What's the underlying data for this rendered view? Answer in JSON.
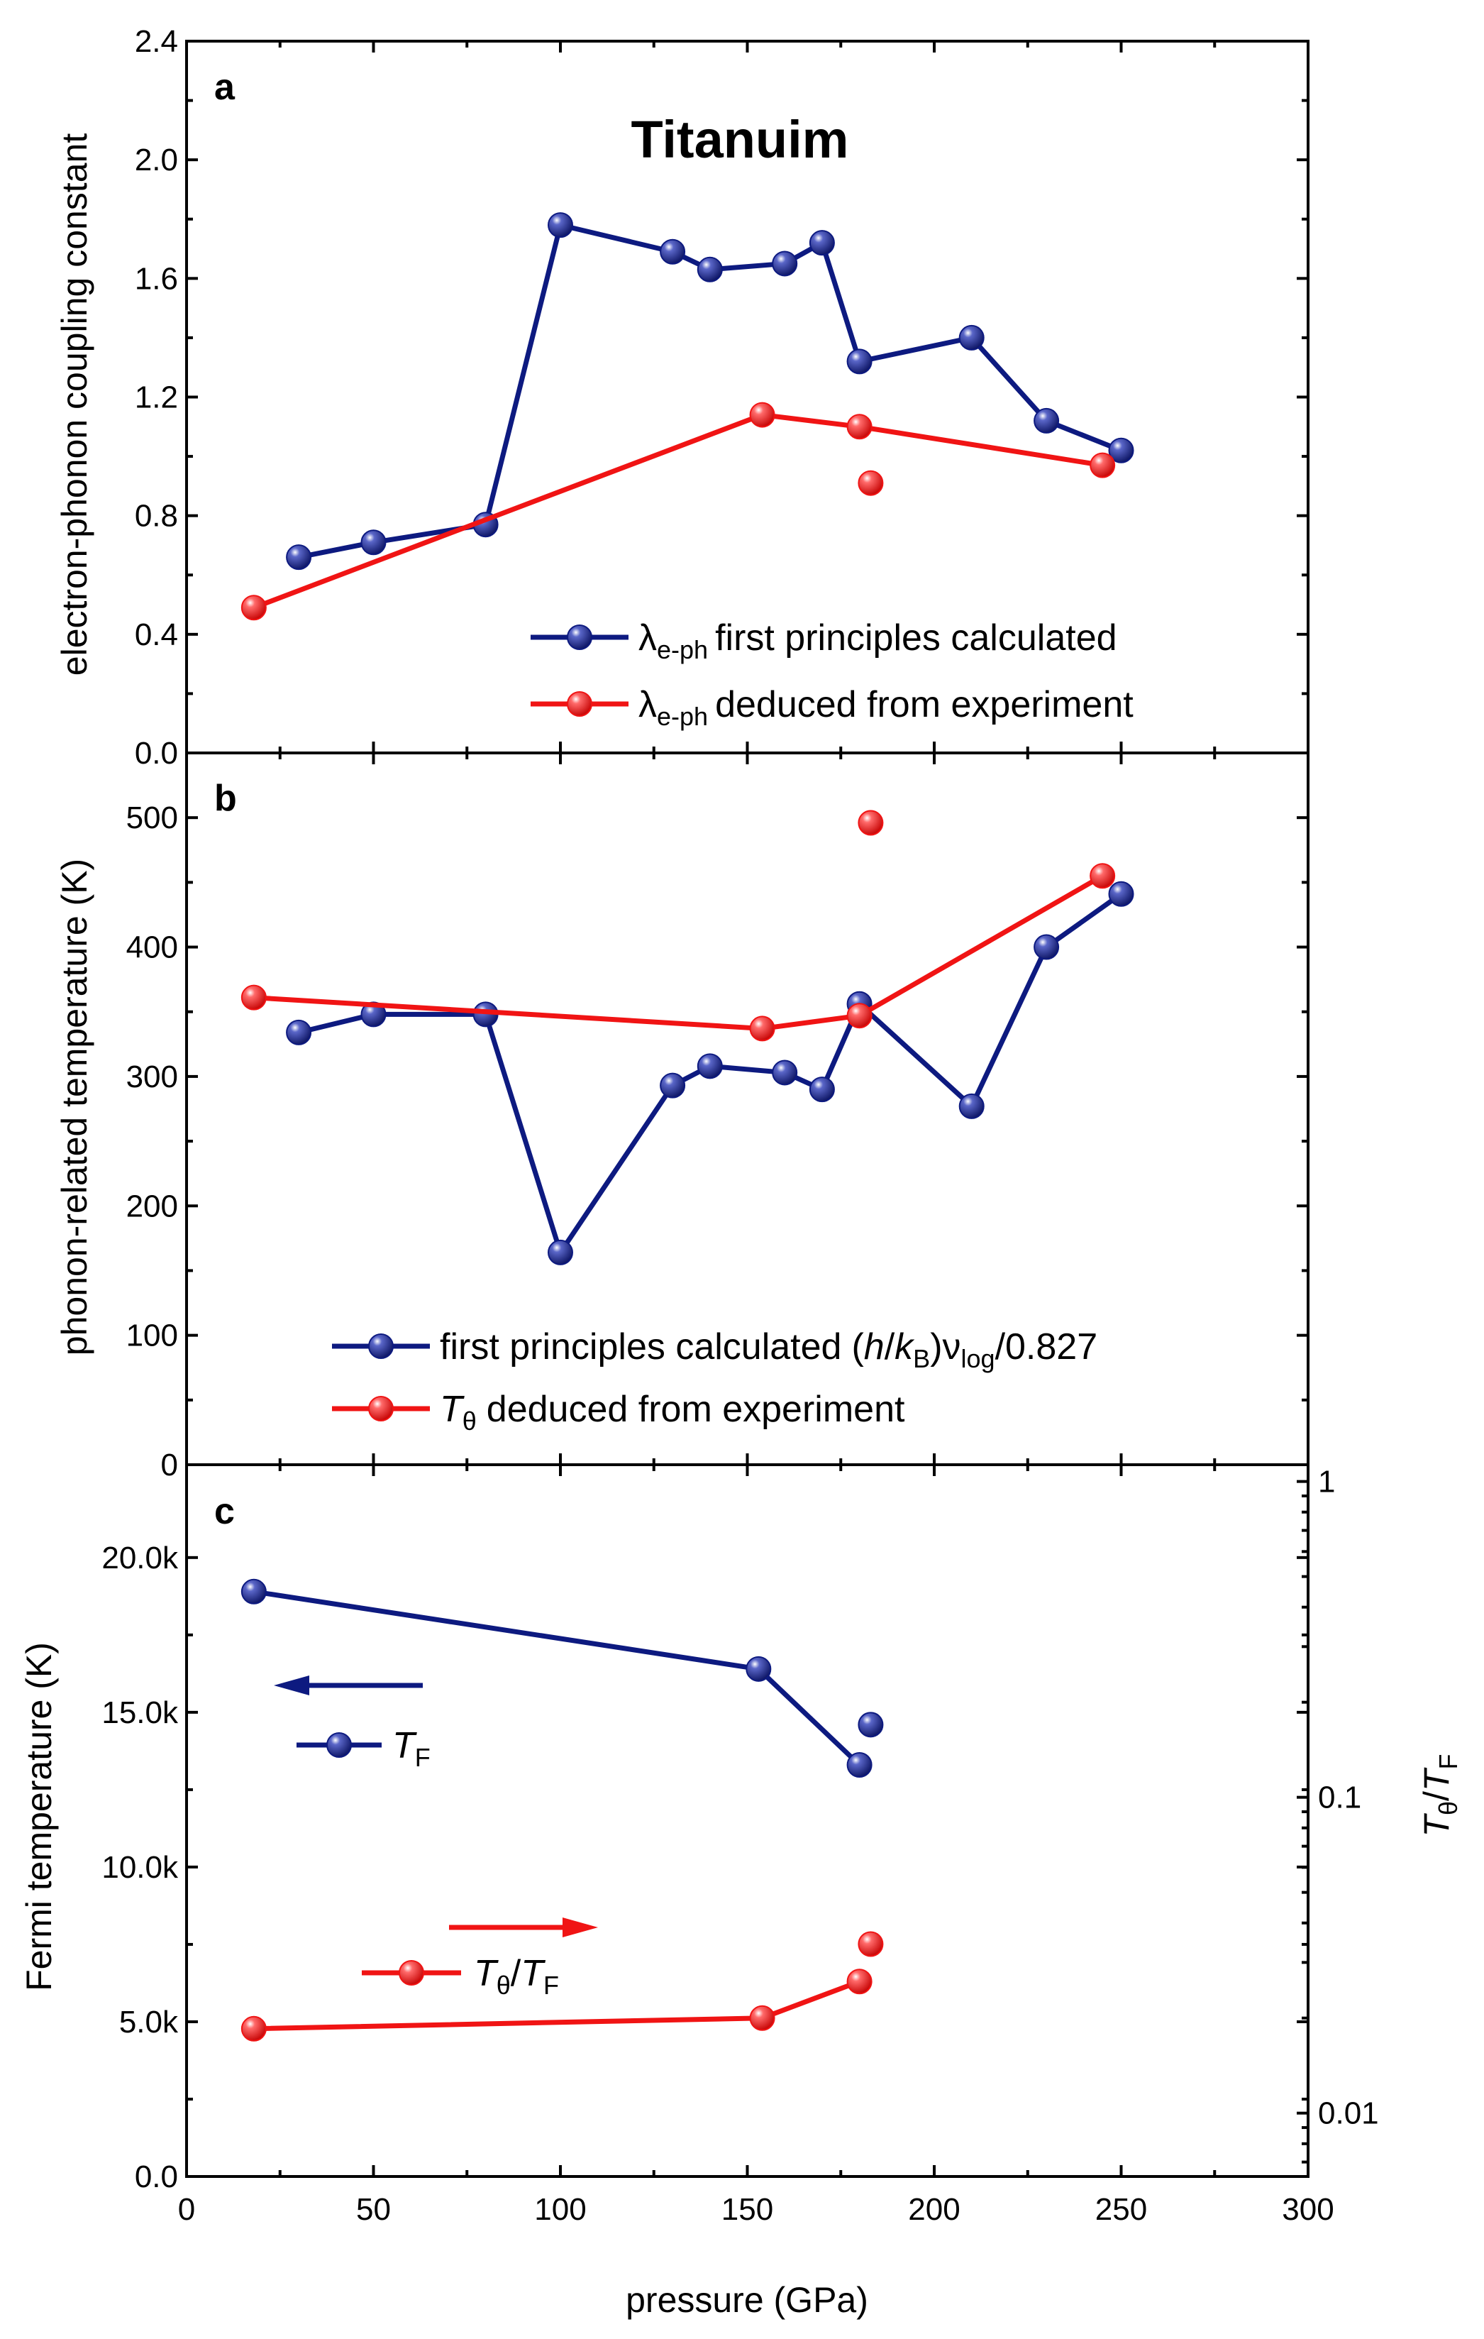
{
  "colors": {
    "navy": "#0d1a80",
    "red": "#f01414"
  },
  "xaxis": {
    "label": "pressure (GPa)",
    "range": [
      0,
      300
    ],
    "ticks": [
      0,
      50,
      100,
      150,
      200,
      250,
      300
    ],
    "tick_labels": [
      "0",
      "50",
      "100",
      "150",
      "200",
      "250",
      "300"
    ]
  },
  "chart_data": [
    {
      "panel": "a",
      "type": "line",
      "title": "Titanuim",
      "ylabel": "electron-phonon coupling constant",
      "ylim": [
        0,
        2.4
      ],
      "yticks": [
        0,
        0.4,
        0.8,
        1.2,
        1.6,
        2.0,
        2.4
      ],
      "ytick_labels": [
        "0.0",
        "0.4",
        "0.8",
        "1.2",
        "1.6",
        "2.0",
        "2.4"
      ],
      "legend_position": "bottom-right",
      "series": [
        {
          "name": "first principles calculated",
          "symbol": "λ",
          "sub": "e-ph",
          "color": "navy",
          "x": [
            30,
            50,
            80,
            100,
            130,
            140,
            160,
            170,
            180,
            210,
            230,
            250
          ],
          "y": [
            0.66,
            0.71,
            0.77,
            1.78,
            1.69,
            1.63,
            1.65,
            1.72,
            1.32,
            1.4,
            1.12,
            1.02
          ]
        },
        {
          "name": "deduced from experiment",
          "symbol": "λ",
          "sub": "e-ph",
          "color": "red",
          "x": [
            18,
            154,
            180,
            245
          ],
          "y": [
            0.49,
            1.14,
            1.1,
            0.97
          ],
          "extra_points": {
            "x": [
              183
            ],
            "y": [
              0.91
            ]
          }
        }
      ]
    },
    {
      "panel": "b",
      "type": "line",
      "ylabel": "phonon-related temperature (K)",
      "ylim": [
        0,
        550
      ],
      "yticks": [
        0,
        100,
        200,
        300,
        400,
        500
      ],
      "ytick_labels": [
        "0",
        "100",
        "200",
        "300",
        "400",
        "500"
      ],
      "legend_position": "bottom-center",
      "series": [
        {
          "name": "first principles calculated",
          "formula_h": "h",
          "formula_k": "k",
          "formula_b": "B",
          "formula_nu": "ν",
          "formula_log": "log",
          "formula_tail": "/0.827",
          "color": "navy",
          "x": [
            30,
            50,
            80,
            100,
            130,
            140,
            160,
            170,
            180,
            210,
            230,
            250
          ],
          "y": [
            334,
            348,
            348,
            164,
            293,
            308,
            303,
            290,
            356,
            277,
            400,
            441
          ]
        },
        {
          "name": "deduced from experiment",
          "symbol": "T",
          "sub": "θ",
          "color": "red",
          "x": [
            18,
            154,
            180,
            245
          ],
          "y": [
            361,
            337,
            347,
            455
          ],
          "extra_points": {
            "x": [
              183
            ],
            "y": [
              496
            ]
          }
        }
      ]
    },
    {
      "panel": "c",
      "type": "line",
      "ylabel": "Fermi temperature (K)",
      "ylim": [
        0,
        23000
      ],
      "yticks": [
        0,
        5000,
        10000,
        15000,
        20000
      ],
      "ytick_labels": [
        "0.0",
        "5.0k",
        "10.0k",
        "15.0k",
        "20.0k"
      ],
      "y2label_main": "T",
      "y2label_sub": "θ",
      "y2label_main2": "T",
      "y2label_sub2": "F",
      "y2lim_log": [
        0.0063,
        1.13
      ],
      "y2ticks": [
        0.01,
        0.1,
        1
      ],
      "y2tick_labels": [
        "0.01",
        "0.1",
        "1"
      ],
      "series": [
        {
          "name": "T_F",
          "label_main": "T",
          "label_sub": "F",
          "axis": "left",
          "color": "navy",
          "arrow": "left",
          "x": [
            18,
            153,
            180
          ],
          "y": [
            18900,
            16400,
            13300
          ],
          "extra_points": {
            "x": [
              183
            ],
            "y": [
              14600
            ]
          }
        },
        {
          "name": "T_theta/T_F",
          "label_main": "T",
          "label_sub": "θ",
          "label_mid": "/",
          "label_main2": "T",
          "label_sub2": "F",
          "axis": "right",
          "color": "red",
          "arrow": "right",
          "x": [
            18,
            154,
            180
          ],
          "y": [
            0.0185,
            0.02,
            0.0261
          ],
          "extra_points": {
            "x": [
              183
            ],
            "y": [
              0.0343
            ]
          }
        }
      ]
    }
  ]
}
